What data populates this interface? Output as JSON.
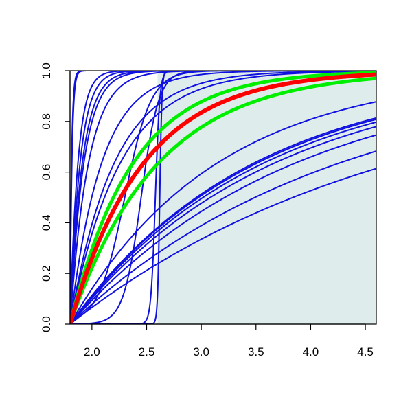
{
  "chart_data": {
    "type": "line",
    "title": "",
    "xlabel": "",
    "ylabel": "",
    "xlim": [
      1.8,
      4.6
    ],
    "ylim": [
      0.0,
      1.0
    ],
    "grid": false,
    "legend": "none",
    "xticks": [
      "2.0",
      "2.5",
      "3.0",
      "3.5",
      "4.0",
      "4.5"
    ],
    "yticks": [
      "0.0",
      "0.2",
      "0.4",
      "0.6",
      "0.8",
      "1.0"
    ],
    "shaded_region": {
      "x": [
        2.6,
        4.6
      ],
      "color": "#dfecec"
    },
    "colors": {
      "sample": "#1010e0",
      "estimate": "#ff0000",
      "bounds": "#00ee00"
    },
    "curves": [
      {
        "kind": "sample",
        "rate": 60,
        "origin": 1.8
      },
      {
        "kind": "sample",
        "rate": 70,
        "origin": 1.8
      },
      {
        "kind": "sample",
        "rate": 14,
        "origin": 1.8
      },
      {
        "kind": "sample",
        "rate": 11,
        "origin": 1.8
      },
      {
        "kind": "sample",
        "rate": 8,
        "origin": 1.8
      },
      {
        "kind": "sample",
        "rate": 6,
        "origin": 1.8
      },
      {
        "kind": "sample",
        "rate": 9,
        "origin": 1.8
      },
      {
        "kind": "sample",
        "rate": 3.5,
        "origin": 1.8
      },
      {
        "kind": "sample",
        "rate": 2.5,
        "origin": 1.8
      },
      {
        "kind": "sample",
        "rate": 2.2,
        "origin": 1.8
      },
      {
        "kind": "sample",
        "rate": 0.75,
        "origin": 1.8
      },
      {
        "kind": "sample",
        "rate": 0.6,
        "origin": 1.8
      },
      {
        "kind": "sample",
        "rate": 0.59,
        "origin": 1.8
      },
      {
        "kind": "sample",
        "rate": 0.57,
        "origin": 1.8
      },
      {
        "kind": "sample",
        "rate": 0.54,
        "origin": 1.8
      },
      {
        "kind": "sample",
        "rate": 0.49,
        "origin": 1.8
      },
      {
        "kind": "sample",
        "rate": 0.41,
        "origin": 1.8
      },
      {
        "kind": "sample",
        "rate": 0.34,
        "origin": 1.8
      },
      {
        "kind": "step",
        "center": 2.45,
        "width": 0.08
      },
      {
        "kind": "step",
        "center": 2.3,
        "width": 0.12
      },
      {
        "kind": "step",
        "center": 2.58,
        "width": 0.02
      },
      {
        "kind": "step",
        "center": 2.62,
        "width": 0.01
      },
      {
        "kind": "bounds",
        "rate": 1.75,
        "origin": 1.8
      },
      {
        "kind": "bounds",
        "rate": 1.25,
        "origin": 1.8
      },
      {
        "kind": "estimate",
        "rate": 1.5,
        "origin": 1.8
      }
    ]
  }
}
